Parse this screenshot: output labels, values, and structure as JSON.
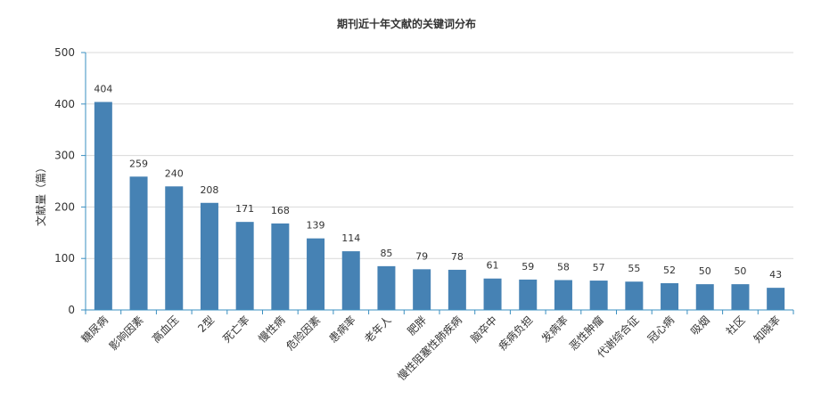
{
  "chart_data": {
    "type": "bar",
    "title": "期刊近十年文献的关键词分布",
    "xlabel": "",
    "ylabel": "文献量（篇）",
    "ylim": [
      0,
      500
    ],
    "yticks": [
      0,
      100,
      200,
      300,
      400,
      500
    ],
    "grid": true,
    "bar_color": "#4682b4",
    "axis_color": "#3a8fc0",
    "categories": [
      "糖尿病",
      "影响因素",
      "高血压",
      "2型",
      "死亡率",
      "慢性病",
      "危险因素",
      "患病率",
      "老年人",
      "肥胖",
      "慢性阻塞性肺疾病",
      "脑卒中",
      "疾病负担",
      "发病率",
      "恶性肿瘤",
      "代谢综合征",
      "冠心病",
      "吸烟",
      "社区",
      "知晓率"
    ],
    "values": [
      404,
      259,
      240,
      208,
      171,
      168,
      139,
      114,
      85,
      79,
      78,
      61,
      59,
      58,
      57,
      55,
      52,
      50,
      50,
      43
    ]
  }
}
